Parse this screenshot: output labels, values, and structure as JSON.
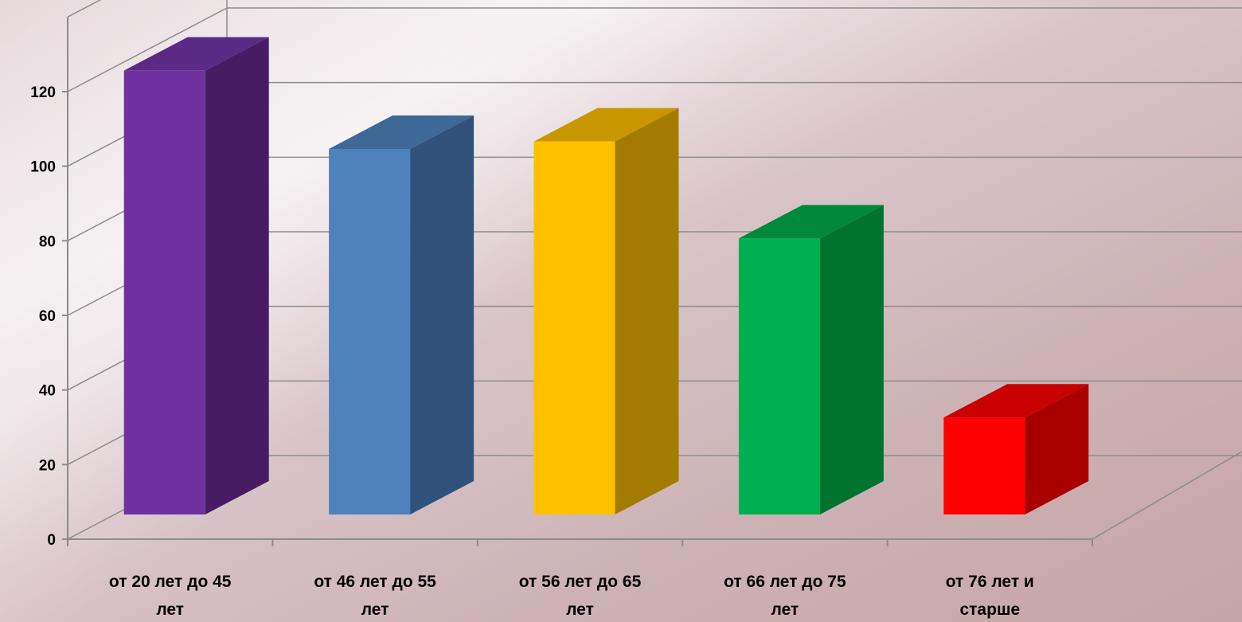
{
  "chart_data": {
    "type": "bar",
    "style": "3d-column",
    "categories": [
      "от 20 лет до 45 лет",
      "от 46 лет до 55 лет",
      "от 56 лет до 65 лет",
      "от 66 лет до 75 лет",
      "от 76 лет и старше"
    ],
    "category_lines": [
      [
        "от 20 лет до 45",
        "лет"
      ],
      [
        "от 46 лет до 55",
        "лет"
      ],
      [
        "от 56 лет до 65",
        "лет"
      ],
      [
        "от 66 лет до 75",
        "лет"
      ],
      [
        "от 76 лет и",
        "старше"
      ]
    ],
    "values": [
      119,
      98,
      100,
      74,
      26
    ],
    "colors": {
      "front": [
        "#7030A0",
        "#4F81BD",
        "#FFC000",
        "#00B050",
        "#FF0000"
      ],
      "side": [
        "#471C63",
        "#30527A",
        "#A37B00",
        "#00732F",
        "#A80000"
      ],
      "top": [
        "#5A2A84",
        "#3E6896",
        "#C99800",
        "#00893A",
        "#C90000"
      ]
    },
    "y_ticks": [
      "0",
      "20",
      "40",
      "60",
      "80",
      "100",
      "120"
    ],
    "ylim": [
      0,
      140
    ],
    "grid": true,
    "legend": "none",
    "title": "",
    "xlabel": "",
    "ylabel": ""
  }
}
